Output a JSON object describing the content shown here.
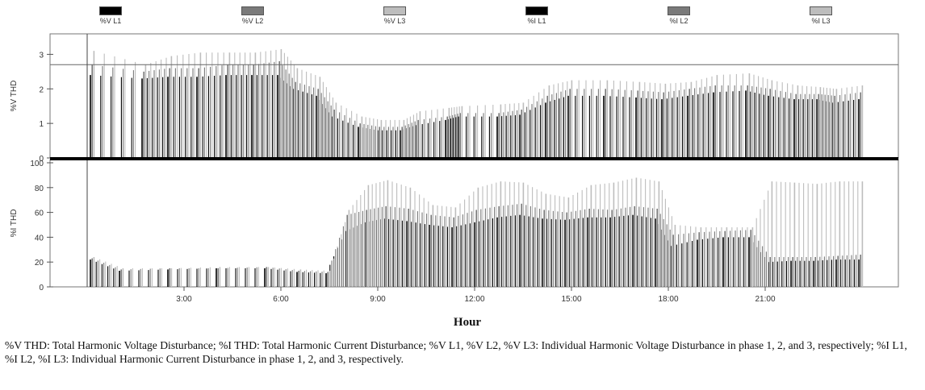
{
  "colors": {
    "L1": "#000000",
    "L2": "#7a7a7a",
    "L3": "#bdbdbd"
  },
  "legend": [
    {
      "label": "%V L1",
      "color": "#000000"
    },
    {
      "label": "%V L2",
      "color": "#7a7a7a"
    },
    {
      "label": "%V L3",
      "color": "#bdbdbd"
    },
    {
      "label": "%I L1",
      "color": "#000000"
    },
    {
      "label": "%I L2",
      "color": "#7a7a7a"
    },
    {
      "label": "%I L3",
      "color": "#bdbdbd"
    }
  ],
  "caption": "%V THD: Total Harmonic Voltage Disturbance; %I THD: Total Harmonic Current Disturbance; %V L1, %V L2, %V L3: Individual Harmonic Voltage Disturbance in phase 1, 2, and 3, respectively; %I L1, %I L2, %I L3: Individual Harmonic Current Disturbance in phase 1, 2, and 3, respectively.",
  "chart_data": [
    {
      "type": "bar",
      "ylabel": "%V THD",
      "xlabel": "Hour",
      "ylim": [
        0,
        3.5
      ],
      "yticks": [
        0,
        1,
        2,
        3
      ],
      "reference_line": 2.7,
      "xlim": [
        0,
        24
      ],
      "xticks": [
        "3:00",
        "6:00",
        "9:00",
        "12:00",
        "15:00",
        "18:00",
        "21:00"
      ],
      "xtick_hours": [
        3,
        6,
        9,
        12,
        15,
        18,
        21
      ],
      "x_hours": [
        0.1,
        1.7,
        2.5,
        3.4,
        4.3,
        5.1,
        5.9,
        6.4,
        7.1,
        7.6,
        8.4,
        9.0,
        9.7,
        10.2,
        11.1,
        11.5,
        12.7,
        13.4,
        14.2,
        14.9,
        16.0,
        17.0,
        17.8,
        18.6,
        19.4,
        20.4,
        21.1,
        21.9,
        22.6,
        23.1,
        23.9
      ],
      "series": [
        {
          "name": "%V L1",
          "values": [
            2.4,
            2.3,
            2.35,
            2.35,
            2.4,
            2.4,
            2.4,
            2.0,
            1.8,
            1.2,
            0.9,
            0.8,
            0.8,
            0.95,
            1.1,
            1.2,
            1.2,
            1.25,
            1.6,
            1.8,
            1.8,
            1.75,
            1.7,
            1.8,
            1.9,
            1.95,
            1.8,
            1.7,
            1.7,
            1.6,
            1.7
          ]
        },
        {
          "name": "%V L2",
          "values": [
            2.7,
            2.5,
            2.6,
            2.6,
            2.7,
            2.7,
            2.8,
            2.2,
            2.0,
            1.4,
            1.0,
            0.9,
            0.9,
            1.1,
            1.2,
            1.3,
            1.3,
            1.4,
            1.8,
            2.0,
            2.0,
            1.95,
            1.9,
            2.0,
            2.1,
            2.1,
            2.0,
            1.85,
            1.85,
            1.8,
            1.9
          ]
        },
        {
          "name": "%V L3",
          "values": [
            3.1,
            2.7,
            2.95,
            3.05,
            3.05,
            3.05,
            3.15,
            2.6,
            2.35,
            1.6,
            1.2,
            1.1,
            1.1,
            1.35,
            1.45,
            1.5,
            1.55,
            1.6,
            2.1,
            2.25,
            2.25,
            2.2,
            2.15,
            2.2,
            2.4,
            2.45,
            2.25,
            2.1,
            2.05,
            2.0,
            2.1
          ]
        }
      ]
    },
    {
      "type": "bar",
      "ylabel": "%I THD",
      "xlabel": "Hour",
      "ylim": [
        0,
        100
      ],
      "yticks": [
        0,
        20,
        40,
        60,
        80,
        100
      ],
      "xlim": [
        0,
        24
      ],
      "xticks": [
        "3:00",
        "6:00",
        "9:00",
        "12:00",
        "15:00",
        "18:00",
        "21:00"
      ],
      "xtick_hours": [
        3,
        6,
        9,
        12,
        15,
        18,
        21
      ],
      "x_hours": [
        0.1,
        1.0,
        2.5,
        4.0,
        5.5,
        6.5,
        7.4,
        8.0,
        8.6,
        9.2,
        9.9,
        10.6,
        11.3,
        12.0,
        12.7,
        13.4,
        14.1,
        14.8,
        15.5,
        16.2,
        16.9,
        17.6,
        18.1,
        18.9,
        19.7,
        20.5,
        21.1,
        21.8,
        22.5,
        23.2,
        23.9
      ],
      "series": [
        {
          "name": "%I L1",
          "values": [
            22,
            13,
            14,
            15,
            15,
            12,
            11,
            45,
            52,
            55,
            53,
            50,
            48,
            52,
            56,
            58,
            55,
            54,
            56,
            56,
            58,
            55,
            33,
            38,
            40,
            40,
            20,
            21,
            21,
            22,
            22
          ]
        },
        {
          "name": "%I L2",
          "values": [
            23,
            14,
            15,
            15,
            16,
            13,
            12,
            58,
            62,
            65,
            63,
            58,
            56,
            62,
            65,
            67,
            62,
            60,
            63,
            62,
            65,
            63,
            42,
            44,
            45,
            46,
            24,
            24,
            24,
            25,
            26
          ]
        },
        {
          "name": "%I L3",
          "values": [
            24,
            15,
            15,
            16,
            16,
            14,
            13,
            62,
            82,
            86,
            80,
            66,
            64,
            80,
            85,
            84,
            75,
            72,
            82,
            84,
            88,
            85,
            50,
            48,
            48,
            48,
            85,
            84,
            83,
            85,
            85
          ]
        }
      ]
    }
  ]
}
